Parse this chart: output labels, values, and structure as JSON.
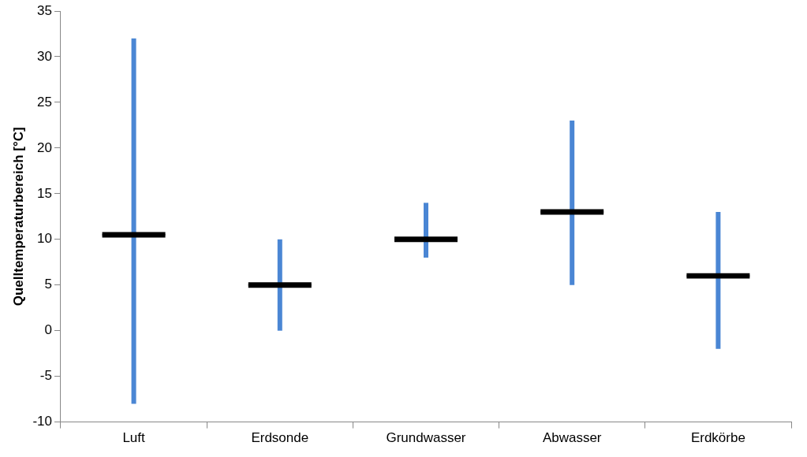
{
  "chart_data": {
    "type": "box",
    "ylabel": "Quelltemperaturbereich [°C]",
    "categories": [
      "Luft",
      "Erdsonde",
      "Grundwasser",
      "Abwasser",
      "Erdkörbe"
    ],
    "series": [
      {
        "color": "#000000",
        "boxes": [
          {
            "low": -8,
            "q1": 10.2,
            "median": 10.5,
            "q3": 10.8,
            "high": 32
          },
          {
            "low": 0,
            "q1": 4.7,
            "median": 5,
            "q3": 5.3,
            "high": 10
          },
          {
            "low": 8,
            "q1": 9.7,
            "median": 10,
            "q3": 10.3,
            "high": 14
          },
          {
            "low": 5,
            "q1": 12.7,
            "median": 13,
            "q3": 13.3,
            "high": 23
          },
          {
            "low": -2,
            "q1": 5.7,
            "median": 6,
            "q3": 6.3,
            "high": 13
          }
        ]
      }
    ],
    "ylim": [
      -10,
      35
    ],
    "yticks": [
      -10,
      -5,
      0,
      5,
      10,
      15,
      20,
      25,
      30,
      35
    ],
    "grid": false,
    "legend": false
  }
}
